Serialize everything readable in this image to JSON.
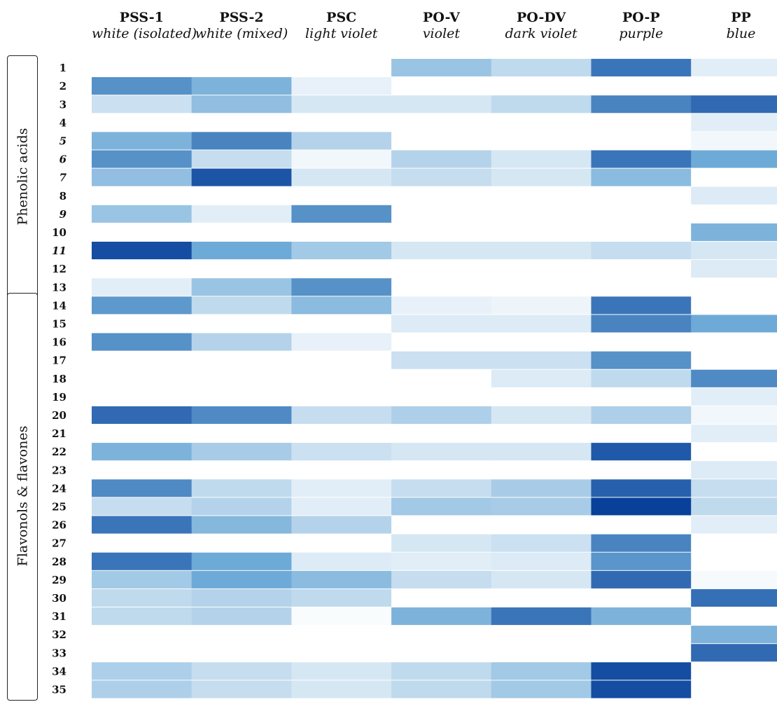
{
  "chart_data": {
    "type": "heatmap",
    "columns": [
      {
        "code": "PSS-1",
        "color": "white (isolated)"
      },
      {
        "code": "PSS-2",
        "color": "white (mixed)"
      },
      {
        "code": "PSC",
        "color": "light violet"
      },
      {
        "code": "PO-V",
        "color": "violet"
      },
      {
        "code": "PO-DV",
        "color": "dark violet"
      },
      {
        "code": "PO-P",
        "color": "purple"
      },
      {
        "code": "PP",
        "color": "blue"
      }
    ],
    "rows": [
      "1",
      "2",
      "3",
      "4",
      "5",
      "6",
      "7",
      "8",
      "9",
      "10",
      "11",
      "12",
      "13",
      "14",
      "15",
      "16",
      "17",
      "18",
      "19",
      "20",
      "21",
      "22",
      "23",
      "24",
      "25",
      "26",
      "27",
      "28",
      "29",
      "30",
      "31",
      "32",
      "33",
      "34",
      "35"
    ],
    "italic_rows": [
      "5",
      "6",
      "7",
      "9",
      "11"
    ],
    "groups": [
      {
        "label": "Phenolic acids",
        "from": "1",
        "to": "13"
      },
      {
        "label": "Flavonols & flavones",
        "from": "14",
        "to": "35"
      }
    ],
    "colormap": {
      "low": "#ffffff",
      "high": "#08409a"
    },
    "values": [
      [
        0,
        0,
        0,
        0.35,
        0.22,
        0.75,
        0.1
      ],
      [
        0.62,
        0.45,
        0.08,
        0,
        0,
        0,
        0
      ],
      [
        0.18,
        0.38,
        0.14,
        0.14,
        0.22,
        0.68,
        0.8
      ],
      [
        0,
        0,
        0,
        0,
        0,
        0,
        0.1
      ],
      [
        0.45,
        0.68,
        0.26,
        0,
        0,
        0,
        0.05
      ],
      [
        0.62,
        0.2,
        0.05,
        0.26,
        0.14,
        0.75,
        0.5
      ],
      [
        0.38,
        0.9,
        0.14,
        0.2,
        0.14,
        0.4,
        0
      ],
      [
        0,
        0,
        0,
        0,
        0,
        0,
        0.12
      ],
      [
        0.35,
        0.1,
        0.62,
        0,
        0,
        0,
        0
      ],
      [
        0,
        0,
        0,
        0,
        0,
        0,
        0.45
      ],
      [
        0.94,
        0.5,
        0.32,
        0.14,
        0.14,
        0.2,
        0.14
      ],
      [
        0,
        0,
        0,
        0,
        0,
        0,
        0.12
      ],
      [
        0.1,
        0.35,
        0.62,
        0,
        0,
        0,
        0
      ],
      [
        0.58,
        0.22,
        0.4,
        0.08,
        0.06,
        0.75,
        0
      ],
      [
        0,
        0,
        0,
        0.12,
        0.12,
        0.68,
        0.5
      ],
      [
        0.62,
        0.26,
        0.08,
        0,
        0,
        0,
        0
      ],
      [
        0,
        0,
        0,
        0.18,
        0.18,
        0.62,
        0
      ],
      [
        0,
        0,
        0,
        0,
        0.12,
        0.22,
        0.65
      ],
      [
        0,
        0,
        0,
        0,
        0,
        0,
        0.1
      ],
      [
        0.8,
        0.65,
        0.2,
        0.28,
        0.14,
        0.28,
        0.05
      ],
      [
        0,
        0,
        0,
        0,
        0,
        0,
        0.1
      ],
      [
        0.45,
        0.3,
        0.18,
        0.14,
        0.14,
        0.88,
        0
      ],
      [
        0,
        0,
        0,
        0,
        0,
        0,
        0.12
      ],
      [
        0.65,
        0.22,
        0.1,
        0.2,
        0.3,
        0.85,
        0.2
      ],
      [
        0.2,
        0.26,
        0.1,
        0.32,
        0.3,
        1.0,
        0.22
      ],
      [
        0.75,
        0.42,
        0.26,
        0,
        0,
        0,
        0.1
      ],
      [
        0,
        0,
        0,
        0.14,
        0.18,
        0.68,
        0
      ],
      [
        0.75,
        0.5,
        0.12,
        0.1,
        0.12,
        0.6,
        0
      ],
      [
        0.32,
        0.5,
        0.4,
        0.2,
        0.14,
        0.8,
        0.03
      ],
      [
        0.22,
        0.26,
        0.22,
        0,
        0,
        0,
        0.78
      ],
      [
        0.22,
        0.26,
        0.02,
        0.45,
        0.75,
        0.45,
        0
      ],
      [
        0,
        0,
        0,
        0,
        0,
        0,
        0.45
      ],
      [
        0,
        0,
        0,
        0,
        0,
        0,
        0.8
      ],
      [
        0.28,
        0.2,
        0.14,
        0.22,
        0.32,
        0.94,
        0
      ],
      [
        0.28,
        0.2,
        0.14,
        0.22,
        0.32,
        0.94,
        0
      ]
    ]
  }
}
